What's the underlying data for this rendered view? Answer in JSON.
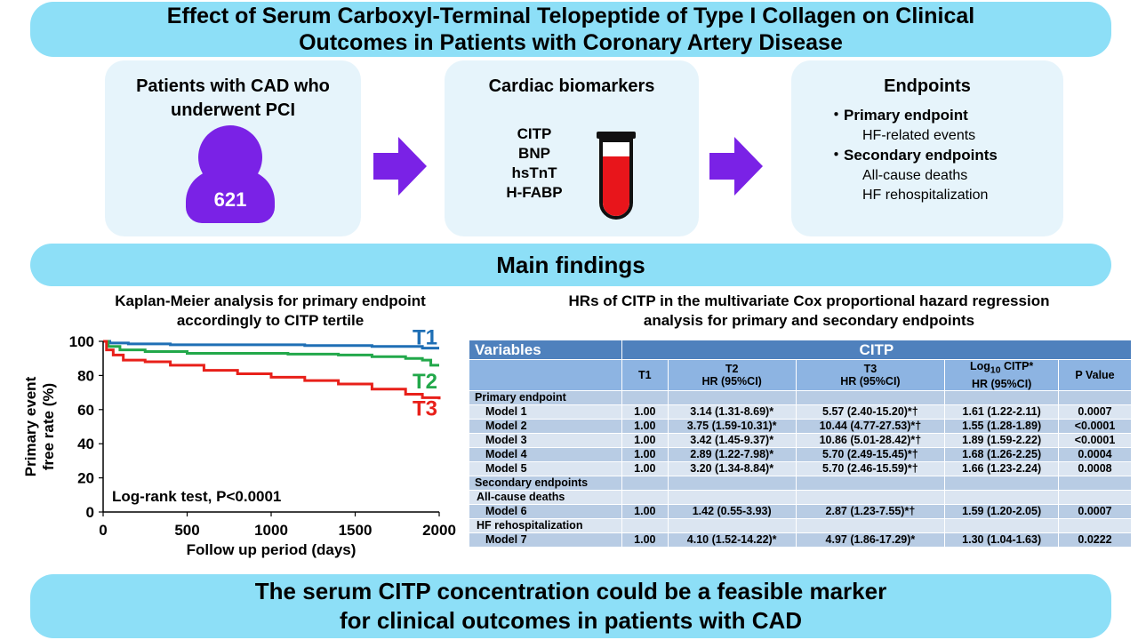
{
  "title": "Effect of Serum Carboxyl-Terminal Telopeptide of Type I Collagen on Clinical Outcomes in Patients with Coronary Artery Disease",
  "title_lines": [
    "Effect of Serum Carboxyl-Terminal Telopeptide of Type I Collagen on Clinical",
    "Outcomes in Patients with Coronary Artery Disease"
  ],
  "patients": {
    "title_lines": [
      "Patients with CAD who",
      "underwent PCI"
    ],
    "count": "621"
  },
  "biomarkers": {
    "title": "Cardiac biomarkers",
    "items": [
      "CITP",
      "BNP",
      "hsTnT",
      "H-FABP"
    ]
  },
  "endpoints": {
    "title": "Endpoints",
    "primary_label": "・Primary endpoint",
    "primary_items": [
      "HF-related events"
    ],
    "secondary_label": "・Secondary endpoints",
    "secondary_items": [
      "All-cause deaths",
      "HF rehospitalization"
    ]
  },
  "main_findings": "Main findings",
  "km": {
    "title_lines": [
      "Kaplan-Meier analysis for primary endpoint",
      "accordingly to CITP tertile"
    ],
    "annotation": "Log-rank test, P<0.0001"
  },
  "hr": {
    "title_lines": [
      "HRs of CITP in the multivariate Cox proportional hazard regression",
      "analysis for primary and secondary endpoints"
    ]
  },
  "table": {
    "header_variables": "Variables",
    "header_citp": "CITP",
    "col_t1": "T1",
    "col_t2": [
      "T2",
      "HR (95%CI)"
    ],
    "col_t3": [
      "T3",
      "HR (95%CI)"
    ],
    "col_log_prefix": "Log",
    "col_log_sub": "10",
    "col_log_suffix": " CITP*",
    "col_log_line2": "HR (95%CI)",
    "col_p": "P Value",
    "rows": [
      {
        "label": "Primary endpoint",
        "type": "section"
      },
      {
        "label": "Model 1",
        "t1": "1.00",
        "t2": "3.14 (1.31-8.69)*",
        "t3": "5.57 (2.40-15.20)*†",
        "log": "1.61 (1.22-2.11)",
        "p": "0.0007"
      },
      {
        "label": "Model 2",
        "t1": "1.00",
        "t2": "3.75 (1.59-10.31)*",
        "t3": "10.44 (4.77-27.53)*†",
        "log": "1.55 (1.28-1.89)",
        "p": "<0.0001"
      },
      {
        "label": "Model 3",
        "t1": "1.00",
        "t2": "3.42 (1.45-9.37)*",
        "t3": "10.86 (5.01-28.42)*†",
        "log": "1.89 (1.59-2.22)",
        "p": "<0.0001"
      },
      {
        "label": "Model 4",
        "t1": "1.00",
        "t2": "2.89 (1.22-7.98)*",
        "t3": "5.70 (2.49-15.45)*†",
        "log": "1.68 (1.26-2.25)",
        "p": "0.0004"
      },
      {
        "label": "Model 5",
        "t1": "1.00",
        "t2": "3.20 (1.34-8.84)*",
        "t3": "5.70 (2.46-15.59)*†",
        "log": "1.66 (1.23-2.24)",
        "p": "0.0008"
      },
      {
        "label": "Secondary endpoints",
        "type": "section"
      },
      {
        "label": "All-cause deaths",
        "type": "subsection"
      },
      {
        "label": "Model 6",
        "t1": "1.00",
        "t2": "1.42 (0.55-3.93)",
        "t3": "2.87 (1.23-7.55)*†",
        "log": "1.59 (1.20-2.05)",
        "p": "0.0007"
      },
      {
        "label": "HF rehospitalization",
        "type": "subsection"
      },
      {
        "label": "Model 7",
        "t1": "1.00",
        "t2": "4.10 (1.52-14.22)*",
        "t3": "4.97 (1.86-17.29)*",
        "log": "1.30 (1.04-1.63)",
        "p": "0.0222"
      }
    ]
  },
  "conclusion_lines": [
    "The serum CITP concentration could be a feasible marker",
    "for clinical outcomes in patients with CAD"
  ],
  "colors": {
    "pill": "#8ddff7",
    "card": "#e6f4fb",
    "arrow": "#7a22e6",
    "T1": "#1f6fb5",
    "T2": "#22a84a",
    "T3": "#e8201a"
  },
  "chart_data": {
    "type": "line",
    "title": "",
    "xlabel": "Follow up period (days)",
    "ylabel": "Primary event free rate (%)",
    "xlim": [
      0,
      2000
    ],
    "ylim": [
      0,
      100
    ],
    "xticks": [
      0,
      500,
      1000,
      1500,
      2000
    ],
    "yticks": [
      0,
      20,
      40,
      60,
      80,
      100
    ],
    "series": [
      {
        "name": "T1",
        "x": [
          0,
          40,
          150,
          400,
          800,
          1200,
          1600,
          1800,
          1900,
          2000
        ],
        "y": [
          100,
          99,
          98.5,
          98,
          98,
          97.5,
          97,
          97,
          96,
          96
        ]
      },
      {
        "name": "T2",
        "x": [
          0,
          30,
          100,
          250,
          500,
          800,
          1100,
          1400,
          1600,
          1800,
          1900,
          1950,
          2000
        ],
        "y": [
          100,
          97,
          95,
          94,
          93,
          93,
          92.5,
          92,
          91,
          90,
          89,
          86,
          86
        ]
      },
      {
        "name": "T3",
        "x": [
          0,
          20,
          60,
          120,
          250,
          400,
          600,
          800,
          1000,
          1200,
          1400,
          1600,
          1800,
          1900,
          2000
        ],
        "y": [
          100,
          95,
          92,
          89,
          88,
          86,
          83,
          81,
          79,
          77,
          75,
          72,
          69,
          67,
          66
        ]
      }
    ]
  }
}
